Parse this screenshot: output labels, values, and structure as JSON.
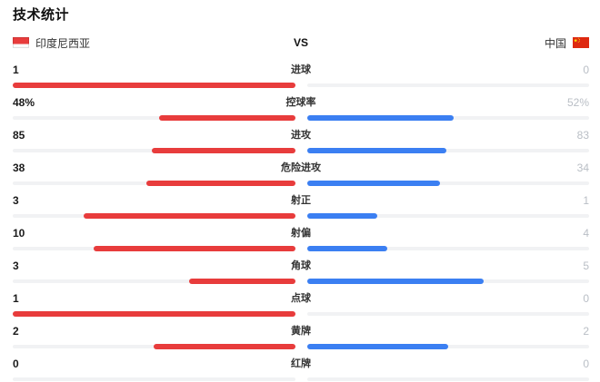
{
  "title": "技术统计",
  "header": {
    "left_team": "印度尼西亚",
    "right_team": "中国",
    "vs_label": "VS",
    "left_flag_icon": "indonesia-flag",
    "right_flag_icon": "china-flag"
  },
  "colors": {
    "left_bar": "#e83c3c",
    "right_bar": "#3b7ff2",
    "track": "#f1f2f4",
    "left_value_text": "#1a1a1a",
    "right_value_text": "#b9bec5",
    "label_text": "#333333",
    "china_flag_red": "#de2910",
    "china_flag_yellow": "#ffde00"
  },
  "rows": [
    {
      "label": "进球",
      "left": "1",
      "right": "0",
      "left_pct": 100,
      "right_pct": 0
    },
    {
      "label": "控球率",
      "left": "48%",
      "right": "52%",
      "left_pct": 48,
      "right_pct": 52
    },
    {
      "label": "进攻",
      "left": "85",
      "right": "83",
      "left_pct": 50.6,
      "right_pct": 49.4
    },
    {
      "label": "危险进攻",
      "left": "38",
      "right": "34",
      "left_pct": 52.8,
      "right_pct": 47.2
    },
    {
      "label": "射正",
      "left": "3",
      "right": "1",
      "left_pct": 75,
      "right_pct": 25
    },
    {
      "label": "射偏",
      "left": "10",
      "right": "4",
      "left_pct": 71.4,
      "right_pct": 28.6
    },
    {
      "label": "角球",
      "left": "3",
      "right": "5",
      "left_pct": 37.5,
      "right_pct": 62.5
    },
    {
      "label": "点球",
      "left": "1",
      "right": "0",
      "left_pct": 100,
      "right_pct": 0
    },
    {
      "label": "黄牌",
      "left": "2",
      "right": "2",
      "left_pct": 50,
      "right_pct": 50
    },
    {
      "label": "红牌",
      "left": "0",
      "right": "0",
      "left_pct": 0,
      "right_pct": 0
    }
  ],
  "chart_data": {
    "type": "bar",
    "title": "技术统计",
    "categories": [
      "进球",
      "控球率",
      "进攻",
      "危险进攻",
      "射正",
      "射偏",
      "角球",
      "点球",
      "黄牌",
      "红牌"
    ],
    "series": [
      {
        "name": "印度尼西亚",
        "color": "#e83c3c",
        "values": [
          1,
          48,
          85,
          38,
          3,
          10,
          3,
          1,
          2,
          0
        ]
      },
      {
        "name": "中国",
        "color": "#3b7ff2",
        "values": [
          0,
          52,
          83,
          34,
          1,
          4,
          5,
          0,
          2,
          0
        ]
      }
    ],
    "value_units": {
      "控球率": "%"
    },
    "layout": "mirrored horizontal paired bars anchored at center; bar length = value / row total",
    "legend_position": "top"
  }
}
